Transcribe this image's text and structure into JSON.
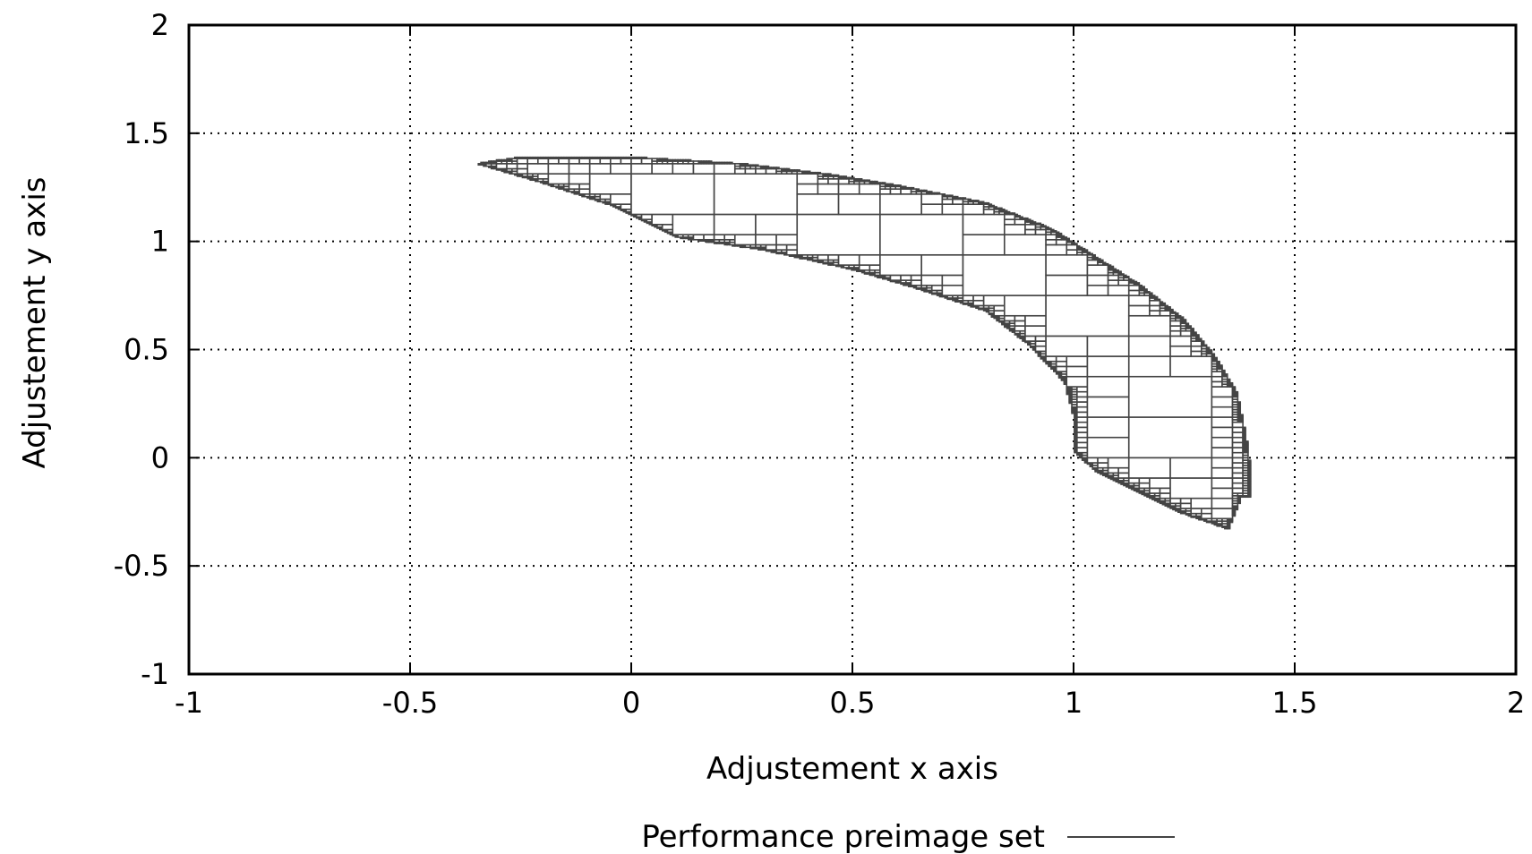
{
  "chart_data": {
    "type": "scatter",
    "title": "",
    "xlabel": "Adjustement x axis",
    "ylabel": "Adjustement y axis",
    "xlim": [
      -1,
      2
    ],
    "ylim": [
      -1,
      2
    ],
    "x_ticks": [
      -1,
      -0.5,
      0,
      0.5,
      1,
      1.5,
      2
    ],
    "x_tick_labels": [
      "-1",
      "-0.5",
      "0",
      "0.5",
      "1",
      "1.5",
      "2"
    ],
    "y_ticks": [
      -1,
      -0.5,
      0,
      0.5,
      1,
      1.5,
      2
    ],
    "y_tick_labels": [
      "-1",
      "-0.5",
      "0",
      "0.5",
      "1",
      "1.5",
      "2"
    ],
    "grid": true,
    "legend": {
      "position": "bottom-center",
      "entries": [
        "Performance preimage set"
      ]
    },
    "series": [
      {
        "name": "Performance preimage set",
        "color": "#444444",
        "description_shape": "curved band of subpaving boxes",
        "upper_boundary": [
          [
            -0.35,
            1.36
          ],
          [
            -0.25,
            1.39
          ],
          [
            0.0,
            1.39
          ],
          [
            0.25,
            1.36
          ],
          [
            0.45,
            1.31
          ],
          [
            0.6,
            1.26
          ],
          [
            0.8,
            1.18
          ],
          [
            0.95,
            1.06
          ],
          [
            1.05,
            0.93
          ],
          [
            1.15,
            0.8
          ],
          [
            1.25,
            0.64
          ],
          [
            1.32,
            0.47
          ],
          [
            1.37,
            0.3
          ],
          [
            1.39,
            0.1
          ],
          [
            1.4,
            -0.05
          ],
          [
            1.38,
            -0.18
          ]
        ],
        "lower_boundary": [
          [
            -0.35,
            1.36
          ],
          [
            -0.2,
            1.27
          ],
          [
            -0.05,
            1.17
          ],
          [
            0.1,
            1.02
          ],
          [
            0.3,
            0.96
          ],
          [
            0.5,
            0.87
          ],
          [
            0.65,
            0.78
          ],
          [
            0.8,
            0.68
          ],
          [
            0.9,
            0.52
          ],
          [
            0.98,
            0.35
          ],
          [
            1.0,
            0.2
          ],
          [
            1.0,
            0.03
          ],
          [
            1.05,
            -0.06
          ],
          [
            1.15,
            -0.16
          ],
          [
            1.25,
            -0.26
          ],
          [
            1.35,
            -0.33
          ],
          [
            1.38,
            -0.18
          ]
        ]
      }
    ]
  }
}
